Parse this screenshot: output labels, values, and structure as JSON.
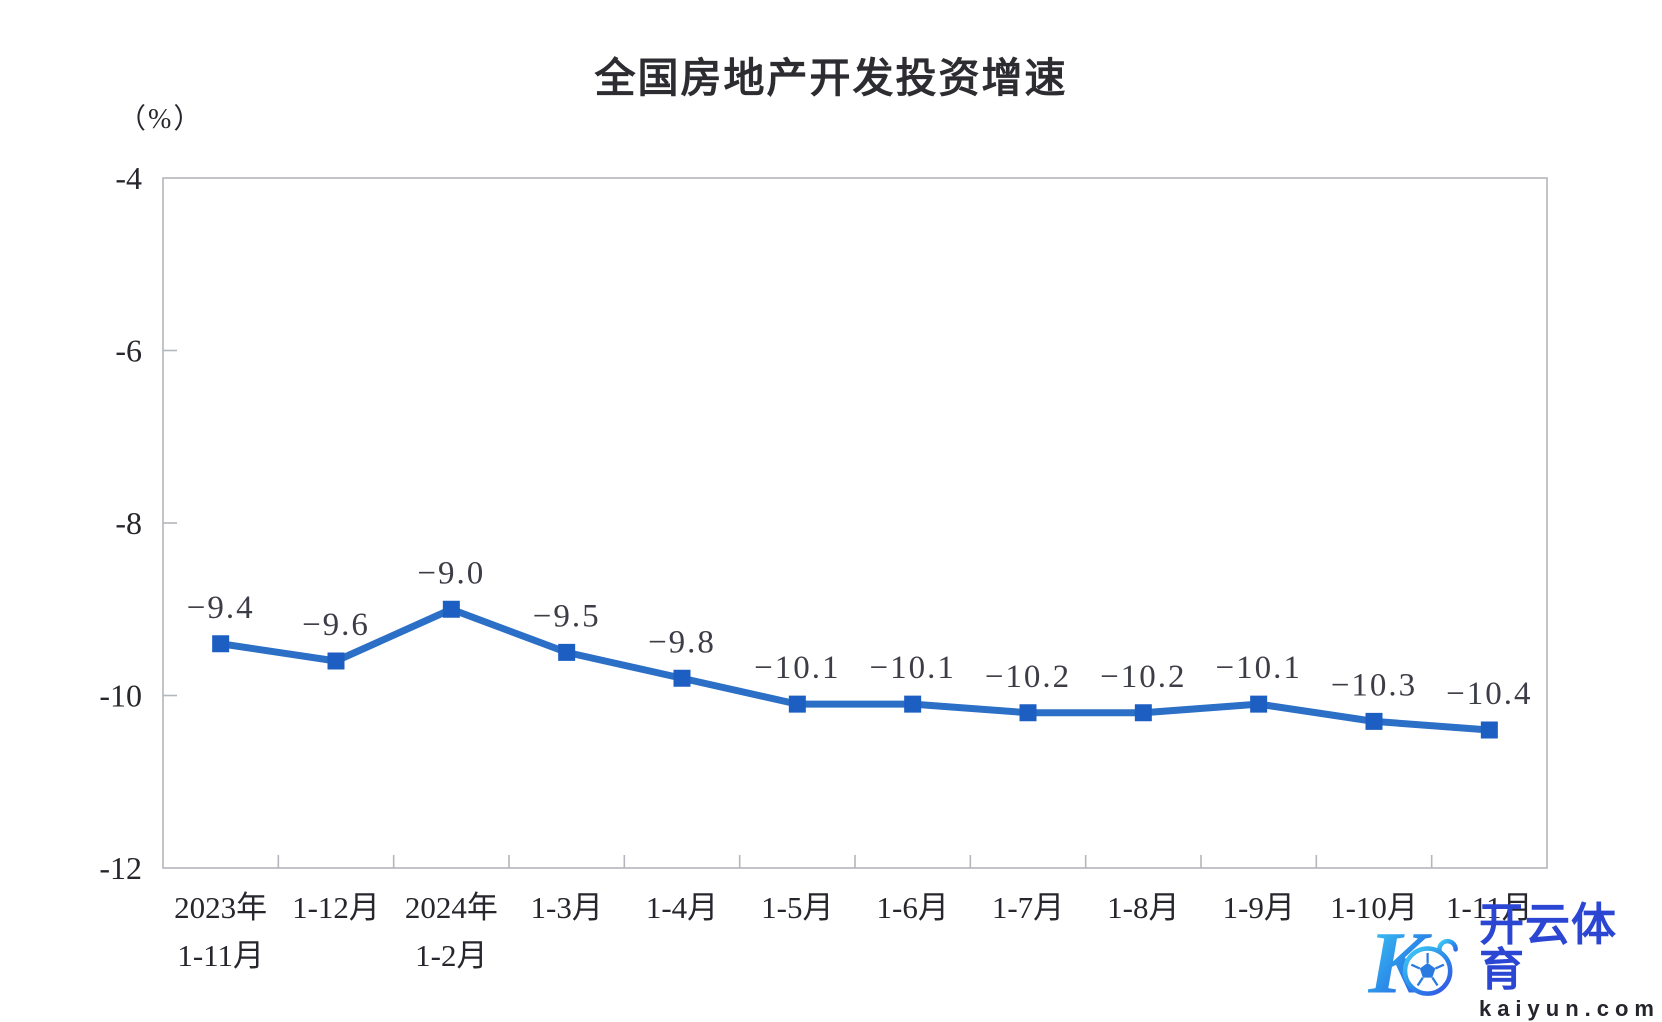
{
  "chart_data": {
    "type": "line",
    "title": "全国房地产开发投资增速",
    "unit_label": "（%）",
    "categories": [
      [
        "2023年",
        "1-11月"
      ],
      [
        "1-12月"
      ],
      [
        "2024年",
        "1-2月"
      ],
      [
        "1-3月"
      ],
      [
        "1-4月"
      ],
      [
        "1-5月"
      ],
      [
        "1-6月"
      ],
      [
        "1-7月"
      ],
      [
        "1-8月"
      ],
      [
        "1-9月"
      ],
      [
        "1-10月"
      ],
      [
        "1-11月"
      ]
    ],
    "values": [
      -9.4,
      -9.6,
      -9.0,
      -9.5,
      -9.8,
      -10.1,
      -10.1,
      -10.2,
      -10.2,
      -10.1,
      -10.3,
      -10.4
    ],
    "data_labels": [
      "−9.4",
      "−9.6",
      "−9.0",
      "−9.5",
      "−9.8",
      "−10.1",
      "−10.1",
      "−10.2",
      "−10.2",
      "−10.1",
      "−10.3",
      "−10.4"
    ],
    "xlabel": "",
    "ylabel": "（%）",
    "ylim": [
      -12,
      -4
    ],
    "yticks": [
      -4,
      -6,
      -8,
      -10,
      -12
    ],
    "ytick_labels": [
      "-4",
      "-6",
      "-8",
      "-10",
      "-12"
    ],
    "grid": false,
    "legend_position": "none",
    "series_name": "全国房地产开发投资增速",
    "colors": {
      "line": "#2b6fc6",
      "marker": "#1d5ec2",
      "axis": "#b3b6ba",
      "tick_label": "#26262c",
      "data_label": "#3c3d46"
    }
  },
  "watermark": {
    "brand": "开云体育",
    "domain": "kaiyun.com",
    "logo_icon": "kaiyun-k-soccer-ball-logo",
    "brand_color": "#2b46d2",
    "domain_color": "#25252d",
    "logo_gradient_start": "#3fd0f6",
    "logo_gradient_mid": "#2b8ae8",
    "logo_gradient_end": "#3355e6"
  }
}
